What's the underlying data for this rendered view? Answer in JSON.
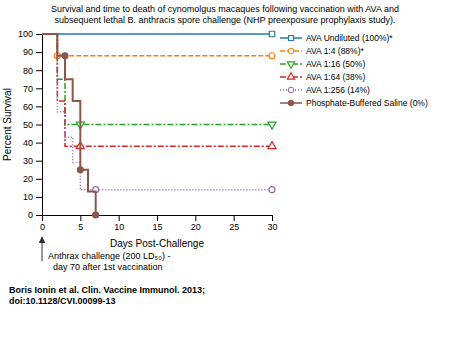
{
  "chart_data": {
    "type": "line",
    "title": "Survival and time to death of cynomolgus macaques following vaccination with AVA and\nsubsequent lethal B. anthracis spore challenge (NHP preexposure prophylaxis study).",
    "x_label": "Days Post-Challenge",
    "y_label": "Percent Survival",
    "xlim": [
      0,
      30
    ],
    "ylim": [
      0,
      100
    ],
    "xticks": [
      0,
      5,
      10,
      15,
      20,
      25,
      30
    ],
    "yticks": [
      0,
      10,
      20,
      30,
      40,
      50,
      60,
      70,
      80,
      90,
      100
    ],
    "annotations": [
      "Anthrax challenge (200 LD₅₀) -\n  day 70 after 1st vaccination",
      "Boris Ionin et al. Clin. Vaccine Immunol. 2013;\ndoi:10.1128/CVI.00099-13"
    ],
    "legend": "right",
    "grid": false,
    "series": [
      {
        "name": "AVA Undiluted (100%)*",
        "line_style": "solid",
        "marker": "square",
        "x": [
          0,
          30
        ],
        "values": [
          100,
          100
        ],
        "marker_x": [
          30
        ],
        "marker_values": [
          100
        ]
      },
      {
        "name": "AVA 1:4 (88%)*",
        "line_style": "dashed",
        "marker": "circle",
        "x": [
          0,
          2,
          2,
          30
        ],
        "values": [
          100,
          100,
          88,
          88
        ],
        "marker_x": [
          2,
          30
        ],
        "marker_values": [
          88,
          88
        ]
      },
      {
        "name": "AVA 1:16 (50%)",
        "line_style": "dashdot",
        "marker": "triangle-down",
        "x": [
          0,
          2,
          2,
          3,
          3,
          5,
          5,
          30
        ],
        "values": [
          100,
          100,
          75,
          75,
          50,
          50,
          50,
          50
        ],
        "marker_x": [
          5,
          30
        ],
        "marker_values": [
          50,
          50
        ]
      },
      {
        "name": "AVA 1:64 (38%)",
        "line_style": "dashdot",
        "marker": "triangle-up",
        "x": [
          0,
          2,
          2,
          3,
          3,
          5,
          5,
          30
        ],
        "values": [
          100,
          100,
          63,
          63,
          38,
          38,
          38,
          38
        ],
        "marker_x": [
          5,
          30
        ],
        "marker_values": [
          38,
          38
        ]
      },
      {
        "name": "AVA 1:256 (14%)",
        "line_style": "dotted",
        "marker": "circle",
        "x": [
          0,
          2,
          2,
          3,
          3,
          4,
          4,
          5,
          5,
          7,
          7,
          30
        ],
        "values": [
          100,
          100,
          57,
          57,
          43,
          43,
          29,
          29,
          14,
          14,
          14,
          14
        ],
        "marker_x": [
          7,
          30
        ],
        "marker_values": [
          14,
          14
        ]
      },
      {
        "name": "Phosphate-Buffered Saline (0%)",
        "line_style": "solid",
        "marker": "dot",
        "x": [
          0,
          2,
          2,
          3,
          3,
          4,
          4,
          5,
          5,
          6,
          6,
          7,
          7,
          7
        ],
        "values": [
          100,
          100,
          88,
          88,
          75,
          75,
          63,
          63,
          25,
          25,
          13,
          13,
          0,
          0
        ],
        "marker_x": [
          3,
          5,
          7
        ],
        "marker_values": [
          88,
          25,
          0
        ]
      }
    ]
  }
}
